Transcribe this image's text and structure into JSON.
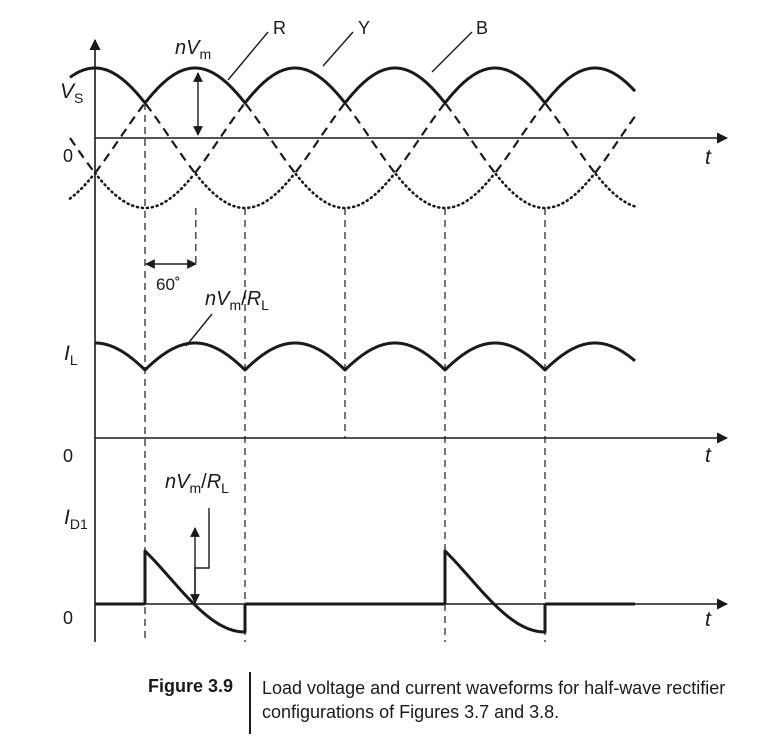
{
  "labels": {
    "vs": "V",
    "vs_sub": "S",
    "il": "I",
    "il_sub": "L",
    "id1": "I",
    "id1_sub": "D1",
    "zero": "0",
    "t": "t",
    "phase_R": "R",
    "phase_Y": "Y",
    "phase_B": "B",
    "angle": "60˚",
    "peak_voltage": {
      "n": "n",
      "v": "V",
      "sub": "m"
    },
    "peak_current": {
      "n": "n",
      "v": "V",
      "sub": "m",
      "slash": "/",
      "r": "R",
      "r_sub": "L"
    }
  },
  "caption": {
    "number": "Figure 3.9",
    "text": "Load voltage and current waveforms for half-wave rectifier configurations of Figures 3.7 and 3.8."
  }
}
